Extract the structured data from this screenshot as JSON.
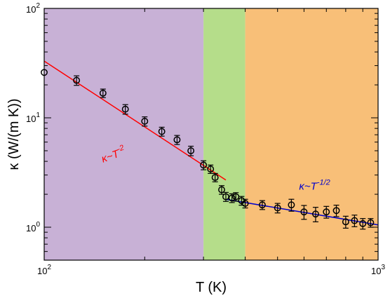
{
  "chart_data": {
    "type": "scatter",
    "xlabel": "T (K)",
    "ylabel": "κ (W/(m K))",
    "xscale": "log",
    "yscale": "log",
    "xlim": [
      100,
      1000
    ],
    "ylim": [
      0.5,
      100
    ],
    "x_tick_labels": [
      {
        "value": 100,
        "base": "10",
        "exp": "2"
      },
      {
        "value": 1000,
        "base": "10",
        "exp": "3"
      }
    ],
    "y_tick_labels": [
      {
        "value": 1,
        "base": "10",
        "exp": "0"
      },
      {
        "value": 10,
        "base": "10",
        "exp": "1"
      },
      {
        "value": 100,
        "base": "10",
        "exp": "2"
      }
    ],
    "regions": [
      {
        "x0": 100,
        "x1": 300,
        "color": "#c8b1d6"
      },
      {
        "x0": 300,
        "x1": 400,
        "color": "#b5dd8a"
      },
      {
        "x0": 400,
        "x1": 1000,
        "color": "#f8bf78"
      }
    ],
    "series": [
      {
        "marker": "open-circle",
        "color": "#000000",
        "points": [
          {
            "x": 100,
            "y": 26.0,
            "err": 0
          },
          {
            "x": 125,
            "y": 22.0,
            "err": 2.2
          },
          {
            "x": 150,
            "y": 16.8,
            "err": 1.5
          },
          {
            "x": 175,
            "y": 12.0,
            "err": 1.2
          },
          {
            "x": 200,
            "y": 9.3,
            "err": 0.9
          },
          {
            "x": 225,
            "y": 7.5,
            "err": 0.7
          },
          {
            "x": 250,
            "y": 6.3,
            "err": 0.6
          },
          {
            "x": 275,
            "y": 5.0,
            "err": 0.5
          },
          {
            "x": 300,
            "y": 3.7,
            "err": 0.35
          },
          {
            "x": 315,
            "y": 3.4,
            "err": 0.3
          },
          {
            "x": 325,
            "y": 2.85,
            "err": 0.25
          },
          {
            "x": 340,
            "y": 2.2,
            "err": 0.2
          },
          {
            "x": 350,
            "y": 1.9,
            "err": 0.18
          },
          {
            "x": 365,
            "y": 1.85,
            "err": 0.17
          },
          {
            "x": 375,
            "y": 1.9,
            "err": 0.17
          },
          {
            "x": 390,
            "y": 1.75,
            "err": 0.16
          },
          {
            "x": 400,
            "y": 1.65,
            "err": 0.15
          },
          {
            "x": 450,
            "y": 1.6,
            "err": 0.15
          },
          {
            "x": 500,
            "y": 1.5,
            "err": 0.15
          },
          {
            "x": 550,
            "y": 1.6,
            "err": 0.2
          },
          {
            "x": 600,
            "y": 1.38,
            "err": 0.2
          },
          {
            "x": 650,
            "y": 1.32,
            "err": 0.2
          },
          {
            "x": 700,
            "y": 1.38,
            "err": 0.17
          },
          {
            "x": 750,
            "y": 1.42,
            "err": 0.17
          },
          {
            "x": 800,
            "y": 1.12,
            "err": 0.14
          },
          {
            "x": 850,
            "y": 1.15,
            "err": 0.14
          },
          {
            "x": 900,
            "y": 1.08,
            "err": 0.12
          },
          {
            "x": 950,
            "y": 1.1,
            "err": 0.1
          }
        ]
      }
    ],
    "fits": [
      {
        "label": "κ~T",
        "exp_text": "-2",
        "color": "#ff0000",
        "x": [
          100,
          350
        ],
        "y": [
          33,
          2.7
        ],
        "label_at": {
          "x": 150,
          "y": 3.9
        }
      },
      {
        "label": "κ~T",
        "exp_text": "-1/2",
        "color": "#0000cc",
        "x": [
          350,
          1000
        ],
        "y": [
          1.8,
          1.05
        ],
        "label_at": {
          "x": 580,
          "y": 2.2
        }
      }
    ]
  }
}
